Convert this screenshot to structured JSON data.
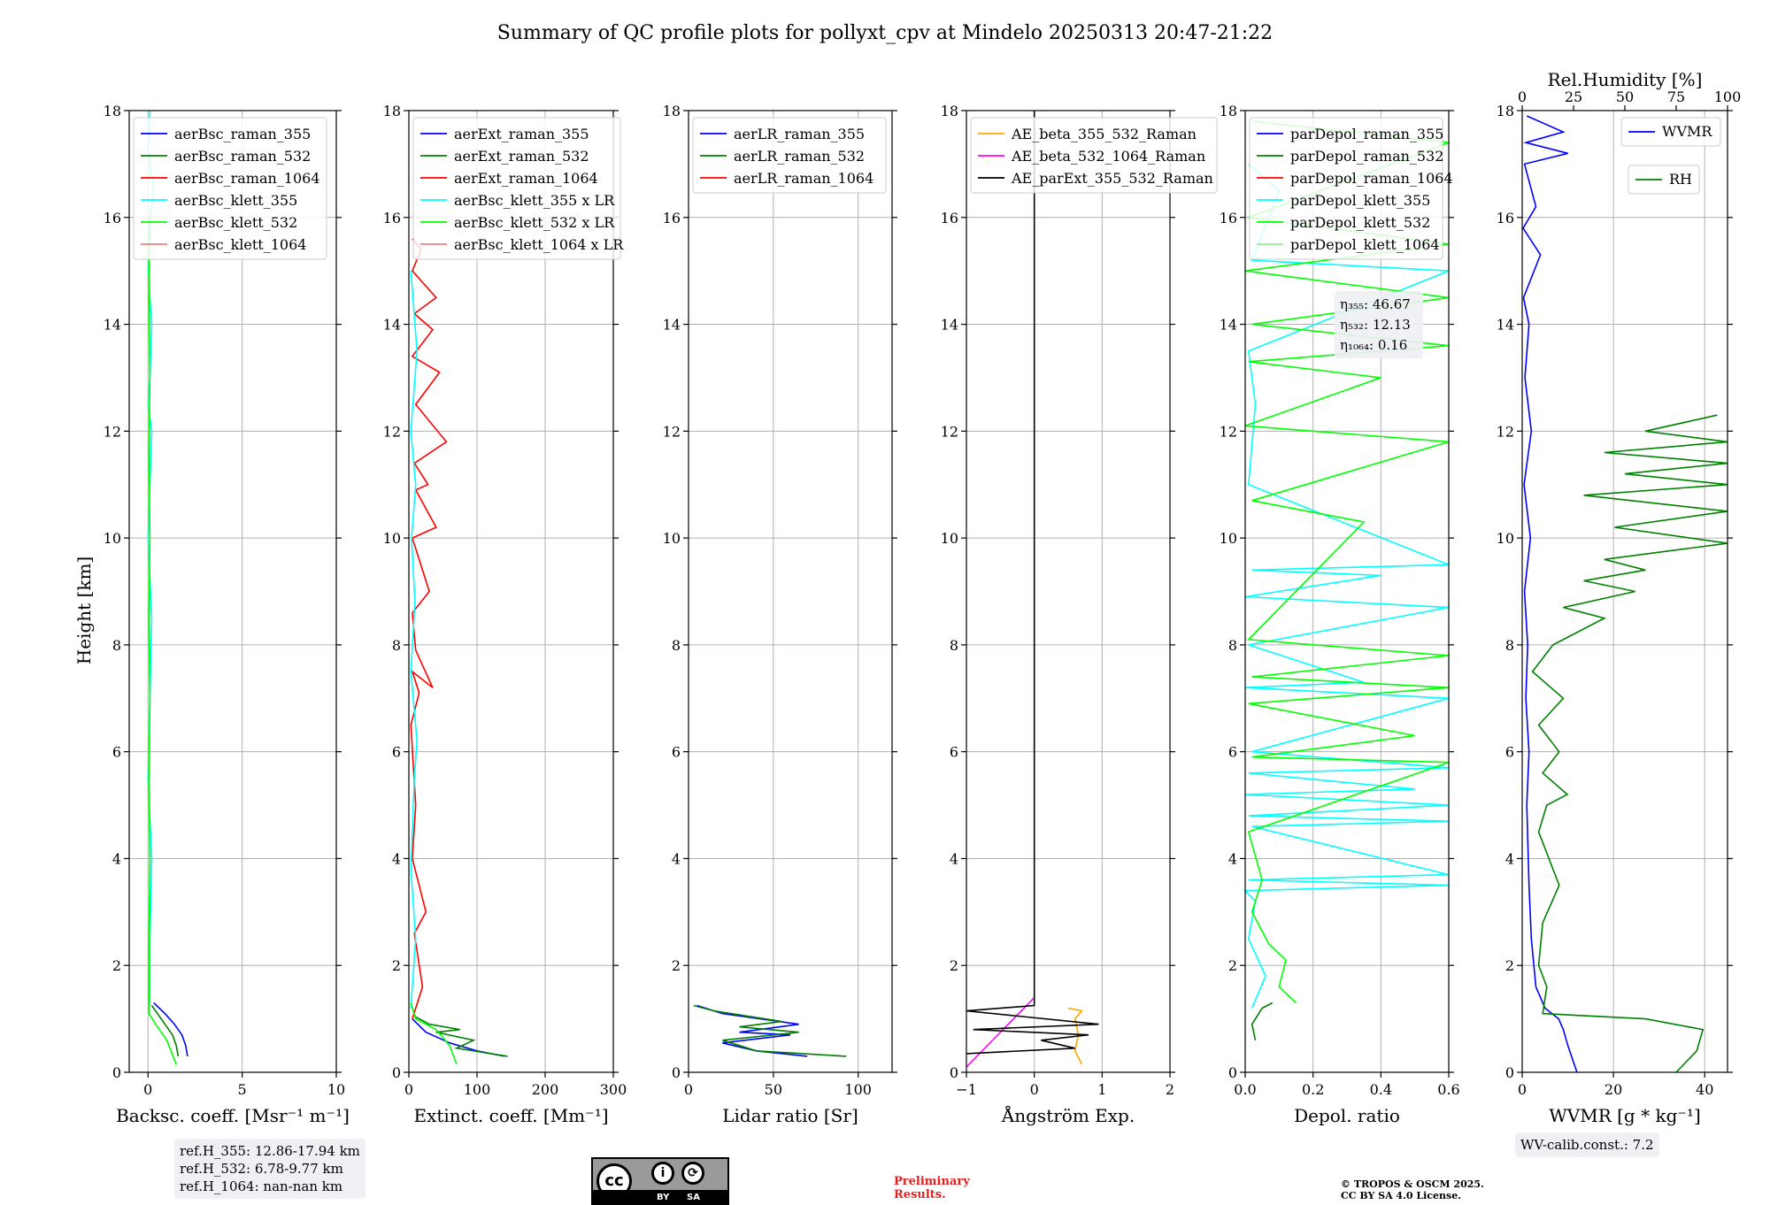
{
  "title": "Summary of QC profile plots for pollyxt_cpv at Mindelo 20250313 20:47-21:22",
  "ylabel": "Height [km]",
  "chart_data": [
    {
      "id": "bsc",
      "type": "line",
      "xlabel": "Backsc. coeff. [Msr⁻¹ m⁻¹]",
      "xlim": [
        -1,
        10
      ],
      "ylim": [
        0,
        18
      ],
      "xticks": [
        "0",
        "5",
        "10"
      ],
      "xtick_values": [
        0,
        5,
        10
      ],
      "legend": [
        "aerBsc_raman_355",
        "aerBsc_raman_532",
        "aerBsc_raman_1064",
        "aerBsc_klett_355",
        "aerBsc_klett_532",
        "aerBsc_klett_1064"
      ],
      "colors": [
        "#0000ff",
        "#008000",
        "#ff0000",
        "#00ffff",
        "#00ff00",
        "#f08080"
      ],
      "series": [
        {
          "name": "aerBsc_raman_355",
          "color": "#0000ff",
          "x": [
            2.1,
            2.0,
            1.8,
            1.4,
            0.9,
            0.3
          ],
          "y": [
            0.3,
            0.5,
            0.7,
            0.9,
            1.1,
            1.3
          ]
        },
        {
          "name": "aerBsc_raman_532",
          "color": "#008000",
          "x": [
            1.6,
            1.5,
            1.3,
            0.9,
            0.5,
            0.2
          ],
          "y": [
            0.3,
            0.5,
            0.7,
            0.9,
            1.1,
            1.25
          ]
        },
        {
          "name": "aerBsc_klett_355",
          "color": "#00ffff",
          "x": [
            0.1,
            0.1,
            0.2,
            0.0,
            0.1,
            0.2,
            0.0,
            0.1,
            0.2,
            0.0,
            0.1,
            0.2,
            0.0,
            0.1,
            0.3,
            0.0,
            0.1
          ],
          "y": [
            1.3,
            2.5,
            4.0,
            5.5,
            7.0,
            8.5,
            10.0,
            11.0,
            12.0,
            12.5,
            13.0,
            14.0,
            15.0,
            16.0,
            16.5,
            17.3,
            18.0
          ]
        },
        {
          "name": "aerBsc_klett_532",
          "color": "#00ff00",
          "x": [
            1.5,
            1.0,
            0.4,
            0.05,
            0.05,
            0.1,
            0.05,
            0.1,
            0.05,
            0.1,
            0.05,
            0.1,
            0.05,
            0.1
          ],
          "y": [
            0.15,
            0.6,
            0.9,
            1.1,
            2.5,
            4.0,
            5.5,
            7.0,
            8.5,
            10.0,
            11.5,
            13.0,
            14.5,
            16.0
          ]
        }
      ]
    },
    {
      "id": "ext",
      "type": "line",
      "xlabel": "Extinct. coeff. [Mm⁻¹]",
      "xlim": [
        0,
        300
      ],
      "ylim": [
        0,
        18
      ],
      "xticks": [
        "0",
        "100",
        "200",
        "300"
      ],
      "xtick_values": [
        0,
        100,
        200,
        300
      ],
      "legend": [
        "aerExt_raman_355",
        "aerExt_raman_532",
        "aerExt_raman_1064",
        "aerBsc_klett_355 x LR",
        "aerBsc_klett_532 x LR",
        "aerBsc_klett_1064 x LR"
      ],
      "colors": [
        "#0000ff",
        "#008000",
        "#ff0000",
        "#00ffff",
        "#00ff00",
        "#f08080"
      ],
      "series": [
        {
          "name": "aerExt_raman_355",
          "color": "#0000ff",
          "x": [
            140,
            100,
            60,
            25,
            5
          ],
          "y": [
            0.3,
            0.4,
            0.55,
            0.75,
            1.0
          ]
        },
        {
          "name": "aerExt_raman_532",
          "color": "#008000",
          "x": [
            145,
            70,
            95,
            40,
            75,
            30,
            8
          ],
          "y": [
            0.3,
            0.45,
            0.6,
            0.75,
            0.8,
            0.9,
            1.05
          ]
        },
        {
          "name": "aerExt_raman_1064",
          "color": "#ff0000",
          "x": [
            5,
            20,
            8,
            25,
            5,
            10,
            3,
            15,
            5,
            35,
            10,
            5,
            30,
            5,
            40,
            10,
            28,
            8,
            55,
            10,
            45,
            5,
            35,
            8,
            40,
            5,
            18,
            5
          ],
          "y": [
            1.0,
            1.6,
            2.6,
            3.0,
            4.0,
            5.0,
            6.5,
            7.1,
            7.5,
            7.2,
            7.9,
            8.6,
            9.0,
            10.0,
            10.2,
            10.9,
            11.0,
            11.4,
            11.8,
            12.5,
            13.1,
            13.4,
            13.9,
            14.2,
            14.5,
            15.0,
            15.4,
            15.6
          ]
        },
        {
          "name": "aerBsc_klett_355 x LR",
          "color": "#00ffff",
          "x": [
            3,
            10,
            3,
            8,
            12,
            3,
            9,
            4,
            10,
            3,
            12,
            3
          ],
          "y": [
            1.2,
            2.5,
            3.8,
            5.5,
            6.2,
            7.5,
            8.8,
            10.0,
            11.0,
            12.0,
            13.5,
            15.0
          ]
        },
        {
          "name": "aerBsc_klett_532 x LR",
          "color": "#00ff00",
          "x": [
            70,
            60,
            40,
            10,
            3
          ],
          "y": [
            0.15,
            0.5,
            0.8,
            1.0,
            1.3
          ]
        }
      ]
    },
    {
      "id": "lr",
      "type": "line",
      "xlabel": "Lidar ratio [Sr]",
      "xlim": [
        0,
        120
      ],
      "ylim": [
        0,
        18
      ],
      "xticks": [
        "0",
        "50",
        "100"
      ],
      "xtick_values": [
        0,
        50,
        100
      ],
      "legend": [
        "aerLR_raman_355",
        "aerLR_raman_532",
        "aerLR_raman_1064"
      ],
      "colors": [
        "#0000ff",
        "#008000",
        "#ff0000"
      ],
      "series": [
        {
          "name": "aerLR_raman_355",
          "color": "#0000ff",
          "x": [
            70,
            40,
            20,
            60,
            30,
            65,
            20,
            5
          ],
          "y": [
            0.3,
            0.4,
            0.55,
            0.7,
            0.75,
            0.9,
            1.1,
            1.25
          ]
        },
        {
          "name": "aerLR_raman_532",
          "color": "#008000",
          "x": [
            93,
            40,
            20,
            65,
            30,
            55,
            15,
            3
          ],
          "y": [
            0.3,
            0.4,
            0.6,
            0.75,
            0.85,
            0.95,
            1.15,
            1.25
          ]
        }
      ]
    },
    {
      "id": "ae",
      "type": "line",
      "xlabel": "Ångström Exp.",
      "xlim": [
        -1,
        2
      ],
      "ylim": [
        0,
        18
      ],
      "xticks": [
        "−1",
        "0",
        "1",
        "2"
      ],
      "xtick_values": [
        -1,
        0,
        1,
        2
      ],
      "legend": [
        "AE_beta_355_532_Raman",
        "AE_beta_532_1064_Raman",
        "AE_parExt_355_532_Raman"
      ],
      "colors": [
        "#ffa500",
        "#ff00ff",
        "#000000"
      ],
      "series": [
        {
          "name": "AE_beta_355_532_Raman",
          "color": "#ffa500",
          "x": [
            0.7,
            0.6,
            0.65,
            0.6,
            0.7,
            0.5
          ],
          "y": [
            0.15,
            0.4,
            0.7,
            1.0,
            1.15,
            1.2
          ]
        },
        {
          "name": "AE_beta_532_1064_Raman",
          "color": "#ff00ff",
          "x": [
            -1.0,
            0.0
          ],
          "y": [
            0.1,
            1.4
          ]
        },
        {
          "name": "AE_parExt_355_532_Raman",
          "color": "#000000",
          "x": [
            -1.0,
            0.6,
            0.1,
            0.8,
            -0.9,
            0.95,
            -1.0,
            0.0,
            0.0
          ],
          "y": [
            0.35,
            0.45,
            0.6,
            0.7,
            0.8,
            0.9,
            1.15,
            1.25,
            18.0
          ]
        }
      ]
    },
    {
      "id": "depol",
      "type": "line",
      "xlabel": "Depol. ratio",
      "xlim": [
        0,
        0.6
      ],
      "ylim": [
        0,
        18
      ],
      "xticks": [
        "0.0",
        "0.2",
        "0.4",
        "0.6"
      ],
      "xtick_values": [
        0,
        0.2,
        0.4,
        0.6
      ],
      "legend": [
        "parDepol_raman_355",
        "parDepol_raman_532",
        "parDepol_raman_1064",
        "parDepol_klett_355",
        "parDepol_klett_532",
        "parDepol_klett_1064"
      ],
      "colors": [
        "#0000ff",
        "#008000",
        "#ff0000",
        "#00ffff",
        "#00ff00",
        "#90ee90"
      ],
      "eta": [
        "η₃₅₅: 46.67",
        "η₅₃₂: 12.13",
        "η₁₀₆₄: 0.16"
      ],
      "series": [
        {
          "name": "parDepol_raman_532",
          "color": "#008000",
          "x": [
            0.03,
            0.02,
            0.05,
            0.08
          ],
          "y": [
            0.6,
            0.9,
            1.2,
            1.3
          ]
        },
        {
          "name": "parDepol_klett_355",
          "color": "#00ffff",
          "x": [
            0.02,
            0.06,
            0.01,
            0.03,
            0.0,
            0.6,
            0.01,
            0.6,
            0.02,
            0.6,
            0.01,
            0.6,
            0.0,
            0.5,
            0.01,
            0.6,
            0.02,
            0.6,
            0.0,
            0.35,
            0.01,
            0.6,
            0.0,
            0.4,
            0.02,
            0.6,
            0.01,
            0.03,
            0.01,
            0.6,
            0.02,
            0.1,
            0.01
          ],
          "y": [
            1.2,
            1.8,
            2.5,
            3.2,
            3.4,
            3.5,
            3.6,
            3.7,
            4.6,
            4.7,
            4.8,
            5.0,
            5.2,
            5.3,
            5.6,
            5.7,
            6.0,
            7.0,
            7.2,
            7.3,
            8.0,
            8.7,
            8.9,
            9.3,
            9.4,
            9.5,
            11.0,
            12.5,
            13.5,
            15.0,
            15.2,
            16.5,
            17.0
          ]
        },
        {
          "name": "parDepol_klett_532",
          "color": "#00ff00",
          "x": [
            0.15,
            0.1,
            0.12,
            0.07,
            0.02,
            0.05,
            0.01,
            0.6,
            0.02,
            0.5,
            0.01,
            0.6,
            0.02,
            0.6,
            0.01,
            0.35,
            0.02,
            0.6,
            0.0,
            0.4,
            0.01,
            0.6,
            0.02,
            0.6,
            0.0,
            0.6,
            0.01,
            0.6,
            0.02
          ],
          "y": [
            1.3,
            1.6,
            2.1,
            2.4,
            3.0,
            3.6,
            4.5,
            5.8,
            5.9,
            6.3,
            6.9,
            7.2,
            7.4,
            7.8,
            8.1,
            10.3,
            10.7,
            11.8,
            12.1,
            13.0,
            13.3,
            13.6,
            14.0,
            14.5,
            15.0,
            15.5,
            16.0,
            17.4,
            17.8
          ]
        }
      ]
    },
    {
      "id": "wv",
      "type": "line",
      "xlabel": "WVMR [g * kg⁻¹]",
      "x2label": "Rel.Humidity [%]",
      "xlim": [
        0,
        45
      ],
      "x2lim": [
        0,
        100
      ],
      "ylim": [
        0,
        18
      ],
      "xticks": [
        "0",
        "20",
        "40"
      ],
      "xtick_values": [
        0,
        20,
        40
      ],
      "x2ticks": [
        "0",
        "25",
        "50",
        "75",
        "100"
      ],
      "x2tick_values": [
        0,
        25,
        50,
        75,
        100
      ],
      "legend": [
        "WVMR",
        "RH"
      ],
      "colors": [
        "#0000ff",
        "#008000"
      ],
      "calib": "WV-calib.const.: 7.2",
      "series": [
        {
          "name": "WVMR",
          "axis": "x",
          "color": "#0000ff",
          "x": [
            12,
            10,
            9,
            8,
            5,
            3,
            2,
            1.5,
            1,
            1.5,
            0.8,
            1.2,
            0.5,
            1.8,
            0.4,
            2,
            0.6,
            1.5,
            0.3,
            4,
            0.2,
            3,
            0.5,
            10,
            0.8,
            9,
            1
          ],
          "y": [
            0.0,
            0.5,
            0.8,
            1.0,
            1.2,
            1.6,
            2.5,
            3.5,
            5.0,
            6.0,
            7.0,
            8.0,
            9.0,
            10.0,
            11.0,
            12.0,
            13.0,
            14.0,
            14.5,
            15.3,
            15.8,
            16.2,
            17.0,
            17.2,
            17.4,
            17.6,
            17.9
          ]
        },
        {
          "name": "RH",
          "axis": "x2",
          "color": "#008000",
          "x": [
            75,
            85,
            88,
            60,
            10,
            12,
            8,
            10,
            18,
            8,
            12,
            22,
            10,
            18,
            8,
            20,
            5,
            15,
            40,
            20,
            55,
            30,
            60,
            40,
            100,
            45,
            100,
            30,
            100,
            50,
            100,
            40,
            100,
            60,
            95
          ],
          "y": [
            0.0,
            0.4,
            0.8,
            1.0,
            1.1,
            1.6,
            2.0,
            2.8,
            3.5,
            4.5,
            5.0,
            5.2,
            5.6,
            6.0,
            6.5,
            7.0,
            7.5,
            8.0,
            8.5,
            8.7,
            9.0,
            9.2,
            9.4,
            9.6,
            9.9,
            10.2,
            10.5,
            10.8,
            11.0,
            11.2,
            11.4,
            11.6,
            11.8,
            12.0,
            12.3
          ]
        }
      ]
    }
  ],
  "ref_heights": [
    "ref.H_355: 12.86-17.94 km",
    "ref.H_532: 6.78-9.77 km",
    "ref.H_1064: nan-nan km"
  ],
  "license": {
    "cc": "cc",
    "by": "BY",
    "sa": "SA"
  },
  "preliminary": [
    "Preliminary",
    "Results."
  ],
  "copyright": [
    "© TROPOS & OSCM 2025.",
    "CC BY SA 4.0 License."
  ]
}
